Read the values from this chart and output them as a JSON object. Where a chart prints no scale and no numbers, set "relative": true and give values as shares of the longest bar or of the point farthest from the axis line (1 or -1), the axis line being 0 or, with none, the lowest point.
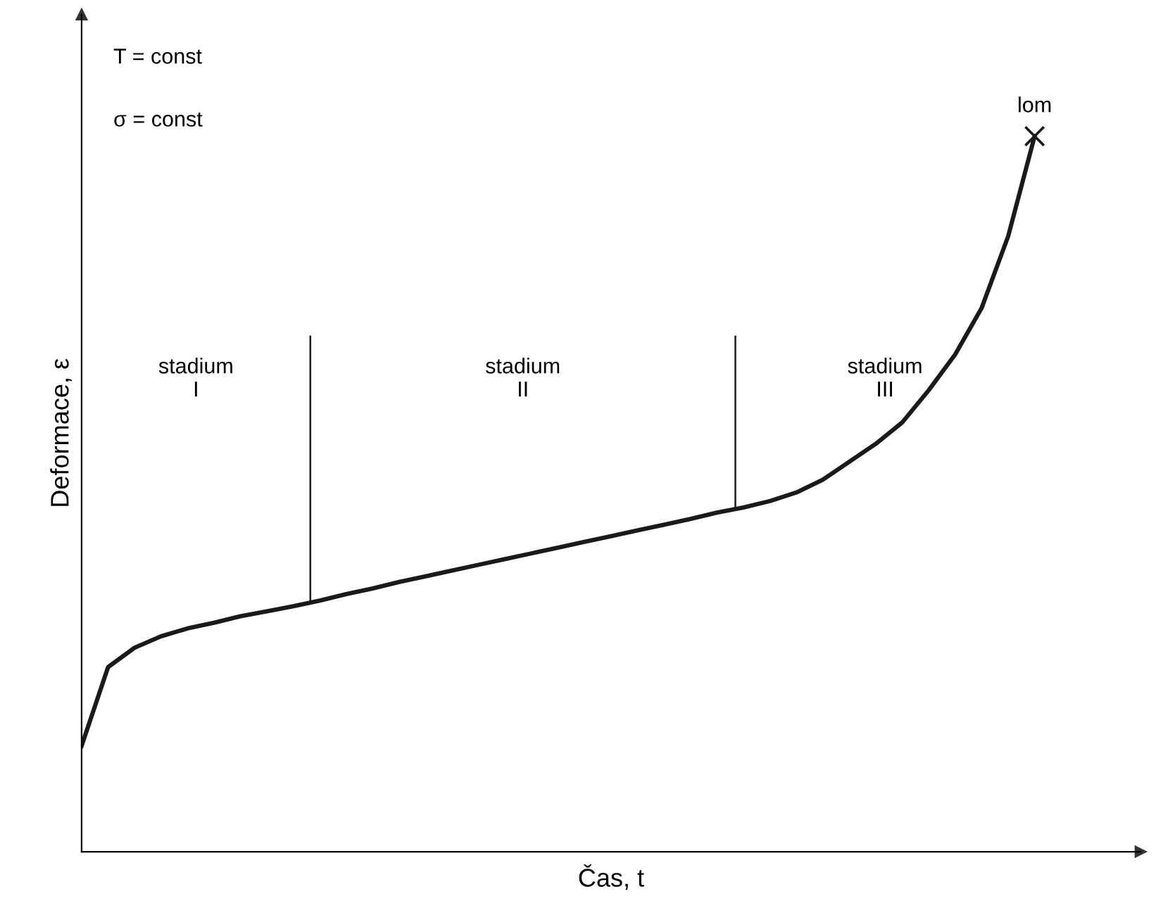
{
  "chart_data": {
    "type": "line",
    "relative": true,
    "xlabel": "Čas, t",
    "ylabel": "Deformace, ε",
    "categories": [
      null,
      null,
      null,
      null,
      null,
      null,
      null,
      null,
      null,
      null,
      null,
      null,
      null,
      null,
      null,
      null,
      null,
      null,
      null,
      null,
      null,
      null,
      null,
      null,
      null,
      null,
      null,
      null,
      null,
      null,
      null,
      null,
      null,
      null,
      null,
      null,
      null
    ],
    "series": [
      {
        "color": "#1a1a1a",
        "values": [
          0.148,
          0.258,
          0.285,
          0.301,
          0.312,
          0.32,
          0.329,
          0.336,
          0.343,
          0.351,
          0.36,
          0.368,
          0.377,
          0.385,
          0.393,
          0.401,
          0.409,
          0.417,
          0.425,
          0.433,
          0.441,
          0.449,
          0.457,
          0.465,
          0.474,
          0.481,
          0.49,
          0.502,
          0.52,
          0.545,
          0.57,
          0.6,
          0.645,
          0.695,
          0.76,
          0.86,
          1
        ]
      }
    ],
    "annotations": [
      "T = const",
      "σ = const",
      "stadium\nI",
      "stadium\nII",
      "stadium\nIII",
      {
        "text": "lom",
        "y": 1
      }
    ]
  }
}
